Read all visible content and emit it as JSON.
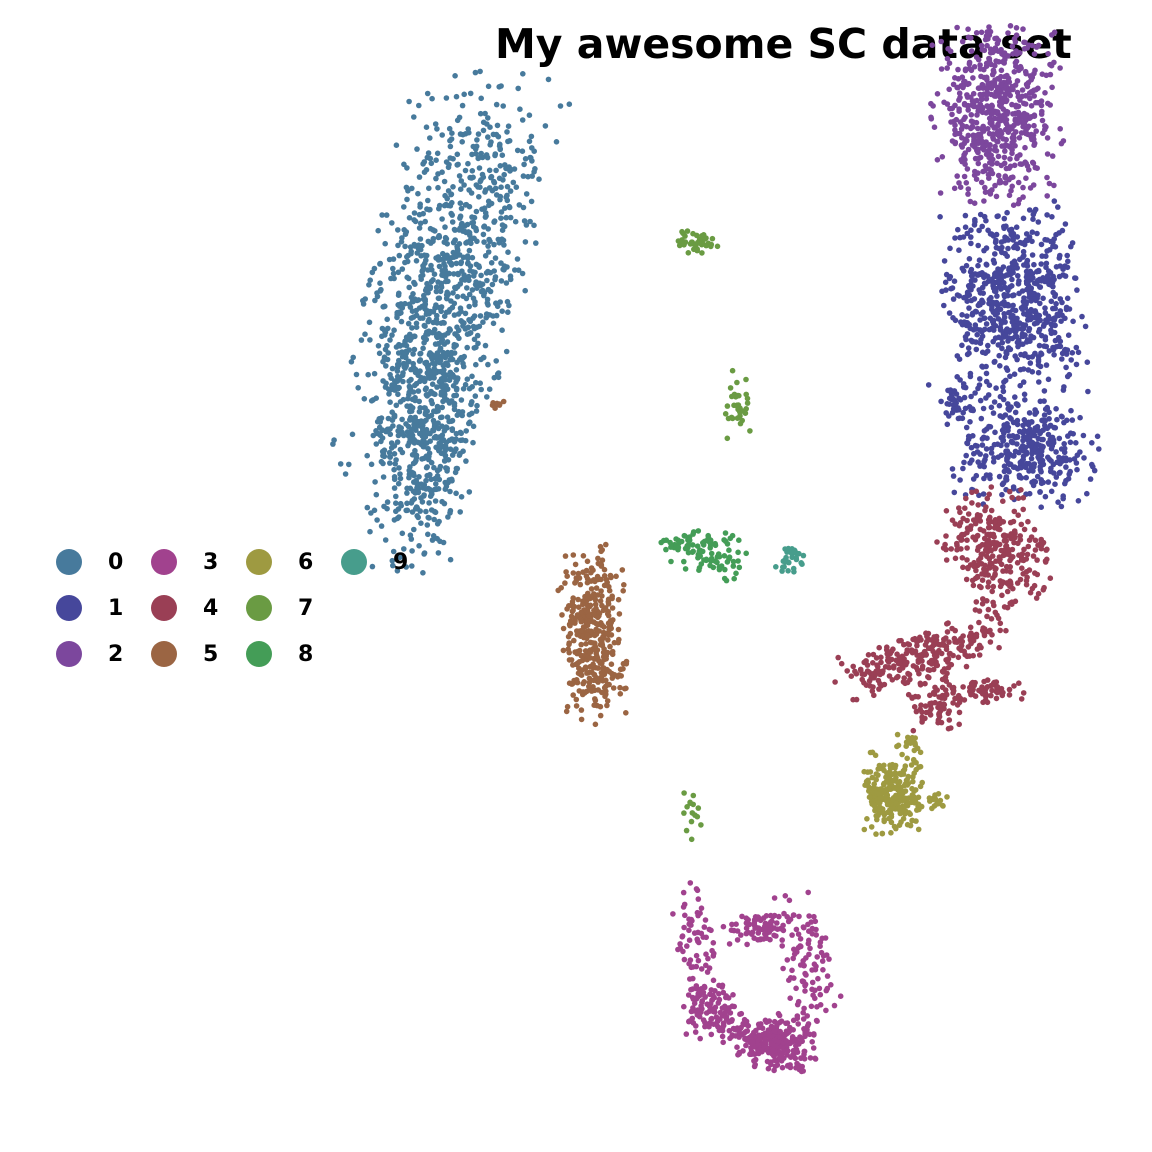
{
  "chart_data": {
    "type": "scatter",
    "title": "My awesome SC data set",
    "xlabel": "",
    "ylabel": "",
    "grid": false,
    "axes_visible": false,
    "legend_placement": "left",
    "xlim": [
      0,
      100
    ],
    "ylim": [
      0,
      100
    ],
    "series": [
      {
        "name": "0",
        "color": "#477a9c",
        "clusters": [
          {
            "cx": 39,
            "cy": 76,
            "sx": 3.2,
            "sy": 8.5,
            "rot": -0.22,
            "n": 900
          },
          {
            "cx": 37,
            "cy": 62,
            "sx": 2.2,
            "sy": 5.5,
            "rot": -0.1,
            "n": 450
          },
          {
            "cx": 36,
            "cy": 67.5,
            "sx": 2.5,
            "sy": 1.0,
            "rot": 0,
            "n": 30
          }
        ]
      },
      {
        "name": "1",
        "color": "#46479b",
        "clusters": [
          {
            "cx": 88,
            "cy": 74,
            "sx": 2.8,
            "sy": 4.2,
            "rot": 0.1,
            "n": 650
          },
          {
            "cx": 89,
            "cy": 61,
            "sx": 3.0,
            "sy": 2.3,
            "rot": 0,
            "n": 350
          },
          {
            "cx": 83,
            "cy": 65,
            "sx": 1.1,
            "sy": 1.0,
            "rot": 0,
            "n": 40
          }
        ]
      },
      {
        "name": "2",
        "color": "#7c479d",
        "clusters": [
          {
            "cx": 86.5,
            "cy": 90,
            "sx": 2.6,
            "sy": 3.6,
            "rot": 0.05,
            "n": 600
          }
        ]
      },
      {
        "name": "3",
        "color": "#a1428e",
        "clusters": [
          {
            "cx": 60.5,
            "cy": 18.5,
            "sx": 0.9,
            "sy": 2.3,
            "rot": 0.2,
            "n": 60
          },
          {
            "cx": 66,
            "cy": 19.5,
            "sx": 1.6,
            "sy": 0.6,
            "rot": 0.2,
            "n": 70
          },
          {
            "cx": 70,
            "cy": 16.5,
            "sx": 1.2,
            "sy": 3.0,
            "rot": 0.2,
            "n": 100
          },
          {
            "cx": 61.5,
            "cy": 12.5,
            "sx": 1.2,
            "sy": 1.4,
            "rot": 0,
            "n": 100
          },
          {
            "cx": 67.5,
            "cy": 9.5,
            "sx": 1.6,
            "sy": 1.2,
            "rot": 0,
            "n": 220
          },
          {
            "cx": 64,
            "cy": 10.5,
            "sx": 1.5,
            "sy": 0.8,
            "rot": -0.5,
            "n": 50
          }
        ]
      },
      {
        "name": "4",
        "color": "#9a3f55",
        "clusters": [
          {
            "cx": 86.5,
            "cy": 52,
            "sx": 2.0,
            "sy": 2.6,
            "rot": 0.4,
            "n": 300
          },
          {
            "cx": 80,
            "cy": 43,
            "sx": 3.8,
            "sy": 1.0,
            "rot": 0.3,
            "n": 250
          },
          {
            "cx": 81,
            "cy": 39,
            "sx": 1.2,
            "sy": 1.2,
            "rot": 0,
            "n": 70
          },
          {
            "cx": 85,
            "cy": 40,
            "sx": 2.0,
            "sy": 0.5,
            "rot": 0.1,
            "n": 70
          }
        ]
      },
      {
        "name": "5",
        "color": "#9b6543",
        "clusters": [
          {
            "cx": 51.5,
            "cy": 45,
            "sx": 1.3,
            "sy": 3.6,
            "rot": 0.05,
            "n": 380
          },
          {
            "cx": 43.2,
            "cy": 65.0,
            "sx": 0.3,
            "sy": 0.2,
            "rot": 0,
            "n": 8
          }
        ]
      },
      {
        "name": "6",
        "color": "#9e9a41",
        "clusters": [
          {
            "cx": 77.5,
            "cy": 31,
            "sx": 1.2,
            "sy": 1.7,
            "rot": 0,
            "n": 250
          },
          {
            "cx": 81,
            "cy": 30.5,
            "sx": 1.0,
            "sy": 0.4,
            "rot": 0,
            "n": 20
          },
          {
            "cx": 79,
            "cy": 35,
            "sx": 0.6,
            "sy": 0.8,
            "rot": 0,
            "n": 20
          }
        ]
      },
      {
        "name": "7",
        "color": "#6a9b43",
        "clusters": [
          {
            "cx": 60.5,
            "cy": 79,
            "sx": 0.9,
            "sy": 0.5,
            "rot": 0,
            "n": 40
          },
          {
            "cx": 64,
            "cy": 65,
            "sx": 0.6,
            "sy": 1.6,
            "rot": 0,
            "n": 35
          },
          {
            "cx": 60,
            "cy": 29.5,
            "sx": 0.5,
            "sy": 1.2,
            "rot": 0,
            "n": 15
          }
        ]
      },
      {
        "name": "8",
        "color": "#449d57",
        "clusters": [
          {
            "cx": 61.5,
            "cy": 52,
            "sx": 1.6,
            "sy": 1.0,
            "rot": -0.3,
            "n": 90
          },
          {
            "cx": 58.5,
            "cy": 53,
            "sx": 1.0,
            "sy": 0.4,
            "rot": 0,
            "n": 15
          }
        ]
      },
      {
        "name": "9",
        "color": "#479d8c",
        "clusters": [
          {
            "cx": 68.5,
            "cy": 51.5,
            "sx": 0.6,
            "sy": 0.6,
            "rot": 0,
            "n": 30
          }
        ]
      }
    ]
  }
}
